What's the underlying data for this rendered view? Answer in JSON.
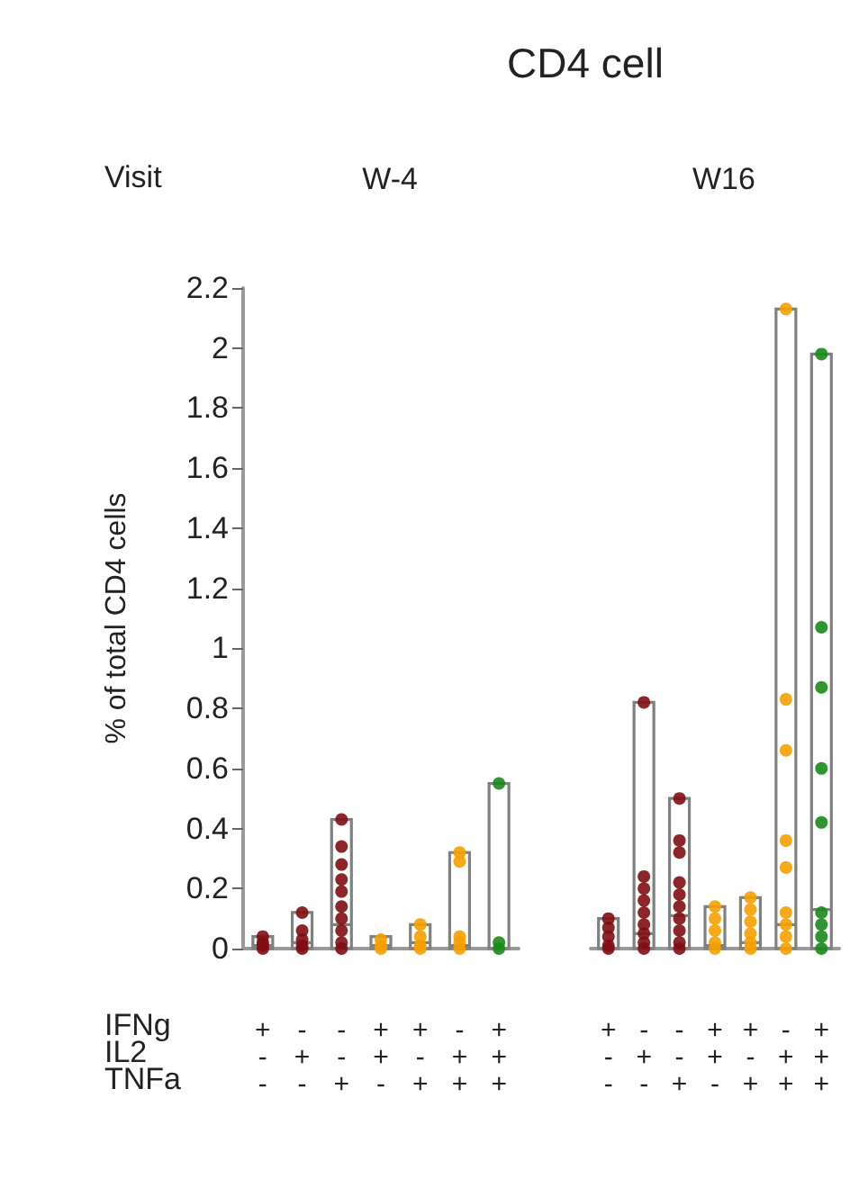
{
  "chart_data": [
    {
      "type": "box",
      "title": "CD4 cell",
      "subtitle": "W-4",
      "ylabel": "% of total CD4 cells",
      "annotations": [
        "Visit",
        "IFNg",
        "IL2",
        "TNFa"
      ],
      "categories": [
        "+\n-\n-",
        "-\n+\n-",
        "-\n-\n+",
        "+\n+\n-",
        "+\n-\n+",
        "-\n+\n+",
        "+\n+\n+"
      ],
      "ylim": [
        0,
        2.2
      ],
      "yticks": [
        0,
        0.2,
        0.4,
        0.6,
        0.8,
        1,
        1.2,
        1.4,
        1.6,
        1.8,
        2,
        2.2
      ],
      "grid": false,
      "marker": "circle",
      "series": [
        {
          "type": "box",
          "color": "#808080",
          "boxes": [
            {
              "low": 0,
              "q1": 0,
              "median": 0.01,
              "q3": 0.04,
              "high": 0.04
            },
            {
              "low": 0,
              "q1": 0,
              "median": 0.02,
              "q3": 0.12,
              "high": 0.12
            },
            {
              "low": 0,
              "q1": 0,
              "median": 0.08,
              "q3": 0.43,
              "high": 0.43
            },
            {
              "low": 0,
              "q1": 0,
              "median": 0.01,
              "q3": 0.04,
              "high": 0.04
            },
            {
              "low": 0,
              "q1": 0,
              "median": 0.02,
              "q3": 0.08,
              "high": 0.08
            },
            {
              "low": 0,
              "q1": 0,
              "median": 0.01,
              "q3": 0.32,
              "high": 0.32
            },
            {
              "low": 0,
              "q1": 0,
              "median": 0,
              "q3": 0.55,
              "high": 0.55
            }
          ]
        },
        {
          "type": "scatter",
          "color": "#800e14",
          "x": [
            "+\n-\n-",
            "+\n-\n-",
            "+\n-\n-",
            "+\n-\n-",
            "-\n+\n-",
            "-\n+\n-",
            "-\n+\n-",
            "-\n+\n-",
            "-\n+\n-",
            "-\n-\n+",
            "-\n-\n+",
            "-\n-\n+",
            "-\n-\n+",
            "-\n-\n+",
            "-\n-\n+",
            "-\n-\n+",
            "-\n-\n+",
            "-\n-\n+",
            "-\n-\n+"
          ],
          "values": [
            0,
            0.01,
            0.02,
            0.04,
            0,
            0.01,
            0.03,
            0.06,
            0.12,
            0,
            0.02,
            0.06,
            0.1,
            0.14,
            0.19,
            0.23,
            0.28,
            0.34,
            0.43
          ]
        },
        {
          "type": "scatter",
          "color": "#f5a000",
          "x": [
            "+\n+\n-",
            "+\n+\n-",
            "+\n+\n-",
            "+\n-\n+",
            "+\n-\n+",
            "+\n-\n+",
            "+\n-\n+",
            "-\n+\n+",
            "-\n+\n+",
            "-\n+\n+",
            "-\n+\n+",
            "-\n+\n+"
          ],
          "values": [
            0,
            0.01,
            0.03,
            0,
            0.01,
            0.04,
            0.08,
            0,
            0.02,
            0.04,
            0.29,
            0.32
          ]
        },
        {
          "type": "scatter",
          "color": "#1a8a1a",
          "x": [
            "+\n+\n+",
            "+\n+\n+",
            "+\n+\n+"
          ],
          "values": [
            0,
            0.02,
            0.55
          ]
        }
      ]
    },
    {
      "type": "box",
      "subtitle": "W16",
      "categories": [
        "+\n-\n-",
        "-\n+\n-",
        "-\n-\n+",
        "+\n+\n-",
        "+\n-\n+",
        "-\n+\n+",
        "+\n+\n+"
      ],
      "ylim": [
        0,
        2.2
      ],
      "tick_labels": "x",
      "grid": false,
      "marker": "circle",
      "series": [
        {
          "type": "box",
          "color": "#808080",
          "boxes": [
            {
              "low": 0,
              "q1": 0,
              "median": 0,
              "q3": 0.1,
              "high": 0.1
            },
            {
              "low": 0,
              "q1": 0,
              "median": 0.05,
              "q3": 0.82,
              "high": 0.82
            },
            {
              "low": 0,
              "q1": 0,
              "median": 0.11,
              "q3": 0.5,
              "high": 0.5
            },
            {
              "low": 0,
              "q1": 0,
              "median": 0.01,
              "q3": 0.14,
              "high": 0.14
            },
            {
              "low": 0,
              "q1": 0,
              "median": 0.02,
              "q3": 0.17,
              "high": 0.17
            },
            {
              "low": 0,
              "q1": 0,
              "median": 0.08,
              "q3": 2.13,
              "high": 2.13
            },
            {
              "low": 0,
              "q1": 0,
              "median": 0.13,
              "q3": 1.98,
              "high": 1.98
            }
          ]
        },
        {
          "type": "scatter",
          "color": "#800e14",
          "x": [
            "+\n-\n-",
            "+\n-\n-",
            "+\n-\n-",
            "+\n-\n-",
            "+\n-\n-",
            "-\n+\n-",
            "-\n+\n-",
            "-\n+\n-",
            "-\n+\n-",
            "-\n+\n-",
            "-\n+\n-",
            "-\n+\n-",
            "-\n+\n-",
            "-\n+\n-",
            "-\n-\n+",
            "-\n-\n+",
            "-\n-\n+",
            "-\n-\n+",
            "-\n-\n+",
            "-\n-\n+",
            "-\n-\n+",
            "-\n-\n+",
            "-\n-\n+",
            "-\n-\n+"
          ],
          "values": [
            0,
            0.01,
            0.04,
            0.07,
            0.1,
            0,
            0.02,
            0.05,
            0.08,
            0.12,
            0.16,
            0.2,
            0.24,
            0.82,
            0,
            0.02,
            0.06,
            0.1,
            0.14,
            0.18,
            0.22,
            0.32,
            0.36,
            0.5
          ]
        },
        {
          "type": "scatter",
          "color": "#f5a000",
          "x": [
            "+\n+\n-",
            "+\n+\n-",
            "+\n+\n-",
            "+\n+\n-",
            "+\n+\n-",
            "+\n-\n+",
            "+\n-\n+",
            "+\n-\n+",
            "+\n-\n+",
            "+\n-\n+",
            "+\n-\n+",
            "-\n+\n+",
            "-\n+\n+",
            "-\n+\n+",
            "-\n+\n+",
            "-\n+\n+",
            "-\n+\n+",
            "-\n+\n+",
            "-\n+\n+",
            "-\n+\n+"
          ],
          "values": [
            0,
            0.02,
            0.06,
            0.1,
            0.14,
            0,
            0.02,
            0.05,
            0.09,
            0.13,
            0.17,
            0,
            0.04,
            0.08,
            0.12,
            0.27,
            0.36,
            0.66,
            0.83,
            2.13
          ]
        },
        {
          "type": "scatter",
          "color": "#1a8a1a",
          "x": [
            "+\n+\n+",
            "+\n+\n+",
            "+\n+\n+",
            "+\n+\n+",
            "+\n+\n+",
            "+\n+\n+",
            "+\n+\n+",
            "+\n+\n+",
            "+\n+\n+"
          ],
          "values": [
            0,
            0.04,
            0.08,
            0.12,
            0.42,
            0.6,
            0.87,
            1.07,
            1.98
          ]
        }
      ]
    }
  ]
}
